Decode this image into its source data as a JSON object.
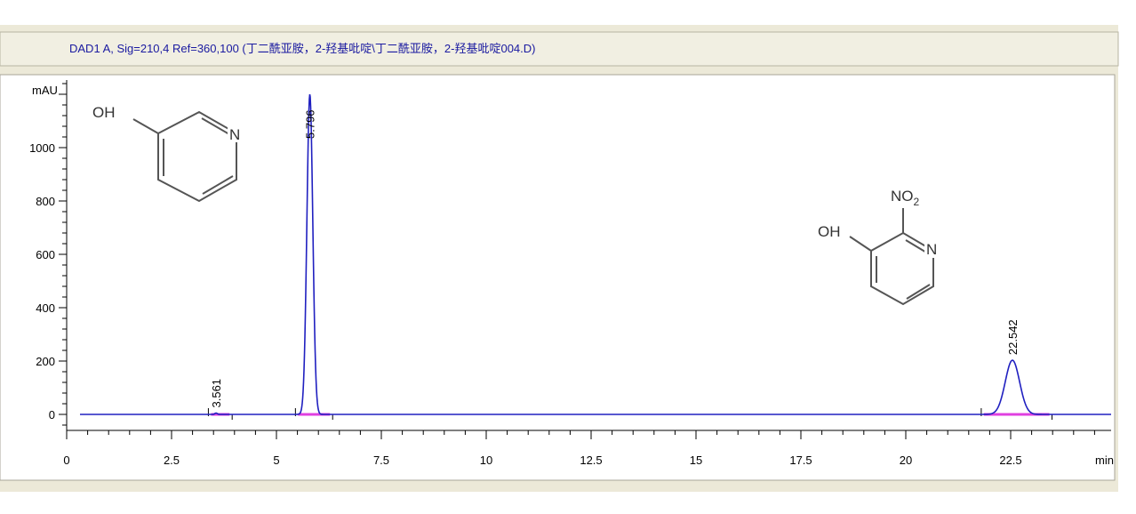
{
  "header": {
    "title": "DAD1 A, Sig=210,4 Ref=360,100 (丁二酰亚胺，2-羟基吡啶\\丁二酰亚胺，2-羟基吡啶004.D)"
  },
  "structures": [
    {
      "oh": "OH",
      "n": "N"
    },
    {
      "oh": "OH",
      "n": "N",
      "no2": "NO",
      "no2_sub": "2"
    }
  ],
  "chart_data": {
    "type": "line",
    "title": "",
    "xlabel": "min",
    "ylabel": "mAU",
    "xlim": [
      0,
      25
    ],
    "ylim": [
      -60,
      1250
    ],
    "xticks": [
      "0",
      "2.5",
      "5",
      "7.5",
      "10",
      "12.5",
      "15",
      "17.5",
      "20",
      "22.5"
    ],
    "xtick_values": [
      0,
      2.5,
      5,
      7.5,
      10,
      12.5,
      15,
      17.5,
      20,
      22.5
    ],
    "yticks": [
      "0",
      "200",
      "400",
      "600",
      "800",
      "1000"
    ],
    "ytick_values": [
      0,
      200,
      400,
      600,
      800,
      1000
    ],
    "grid": false,
    "series_color": "#2020c0",
    "baseline_color": "#e040e0",
    "peaks": [
      {
        "rt": 3.561,
        "label": "3.561",
        "height": 5,
        "sigma": 0.03
      },
      {
        "rt": 5.796,
        "label": "5.796",
        "height": 1200,
        "sigma": 0.07
      },
      {
        "rt": 22.542,
        "label": "22.542",
        "height": 203,
        "sigma": 0.17
      }
    ]
  }
}
